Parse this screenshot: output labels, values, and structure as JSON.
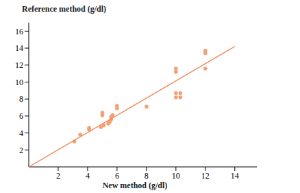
{
  "chart_data": {
    "type": "scatter",
    "x_label": "New method (g/dl)",
    "y_label": "Reference method (g/dl)",
    "xlim": [
      0,
      15.5
    ],
    "ylim": [
      0,
      17
    ],
    "xticks": [
      2,
      4,
      6,
      8,
      10,
      12,
      14
    ],
    "yticks": [
      2,
      4,
      6,
      8,
      10,
      12,
      14,
      16
    ],
    "grid": false,
    "series": [
      {
        "type": "scatter",
        "color": "#f4a072",
        "marker": "circle",
        "x": [
          3.1,
          3.5,
          4.1,
          4.1,
          4.9,
          5.1,
          5.0,
          5.0,
          5.4,
          5.5,
          5.6,
          5.6,
          5.7,
          6.0,
          6.0,
          8.0,
          10.0,
          10.0,
          10.0,
          10.0,
          10.3,
          10.3,
          12.0,
          12.0,
          12.0
        ],
        "values": [
          3.0,
          3.8,
          4.4,
          4.6,
          4.7,
          4.9,
          6.1,
          6.4,
          5.1,
          5.3,
          5.6,
          5.9,
          6.1,
          6.9,
          7.2,
          7.1,
          11.6,
          11.2,
          8.2,
          8.7,
          8.2,
          8.7,
          13.7,
          13.4,
          11.6
        ]
      },
      {
        "type": "line",
        "color": "#ef8a5a",
        "line_style": "solid",
        "x": [
          0,
          14
        ],
        "values": [
          0,
          14.2
        ]
      }
    ]
  }
}
